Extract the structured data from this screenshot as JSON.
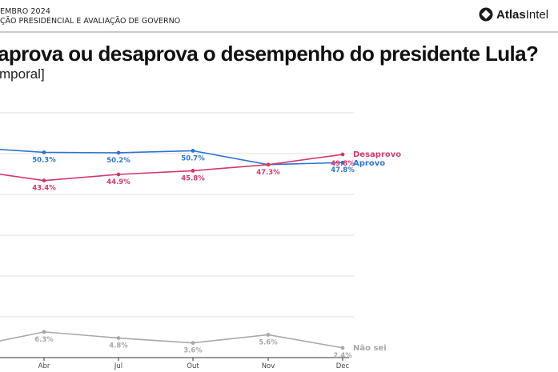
{
  "header": {
    "line1": "EMBRO 2024",
    "line2": "ÇÃO PRESIDENCIAL E AVALIAÇÃO DE GOVERNO",
    "brand_bold": "Atlas",
    "brand_regular": "Intel",
    "brand_icon": "atlasintel-logo-icon"
  },
  "title": "aprova ou desaprova o desempenho do presidente Lula?",
  "subtitle": "mporal]",
  "colors": {
    "aprovo": "#2f74d0",
    "desaprovo": "#d0396a",
    "nao_sei": "#a8a8a8",
    "grid": "#ececec",
    "axis": "#333333"
  },
  "chart_data": {
    "type": "line",
    "title": "aprova ou desaprova o desempenho do presidente Lula?",
    "subtitle": "mporal]",
    "categories": [
      "Abr",
      "Jul",
      "Out",
      "Nov",
      "Dec"
    ],
    "hidden_left_category_estimate": {
      "aprovo": 51.5,
      "desaprovo": 46.0,
      "nao_sei": 2.6
    },
    "series": [
      {
        "key": "aprovo",
        "name": "Aprovo",
        "values": [
          50.3,
          50.2,
          50.7,
          47.3,
          47.8
        ],
        "labels": [
          "50.3%",
          "50.2%",
          "50.7%",
          "",
          "47.8%"
        ]
      },
      {
        "key": "desaprovo",
        "name": "Desaprovo",
        "values": [
          43.4,
          44.9,
          45.8,
          47.3,
          49.8
        ],
        "labels": [
          "43.4%",
          "44.9%",
          "45.8%",
          "47.3%",
          "49.8%"
        ]
      },
      {
        "key": "nao_sei",
        "name": "Não sei",
        "values": [
          6.3,
          4.8,
          3.6,
          5.6,
          2.4
        ],
        "labels": [
          "6.3%",
          "4.8%",
          "3.6%",
          "5.6%",
          "2.4%"
        ]
      }
    ],
    "ylim": [
      0,
      60
    ],
    "ygrid": [
      10,
      20,
      30,
      40,
      50,
      60
    ],
    "grid": true,
    "legend": "inline-right-end",
    "xlabel": "",
    "ylabel": ""
  }
}
